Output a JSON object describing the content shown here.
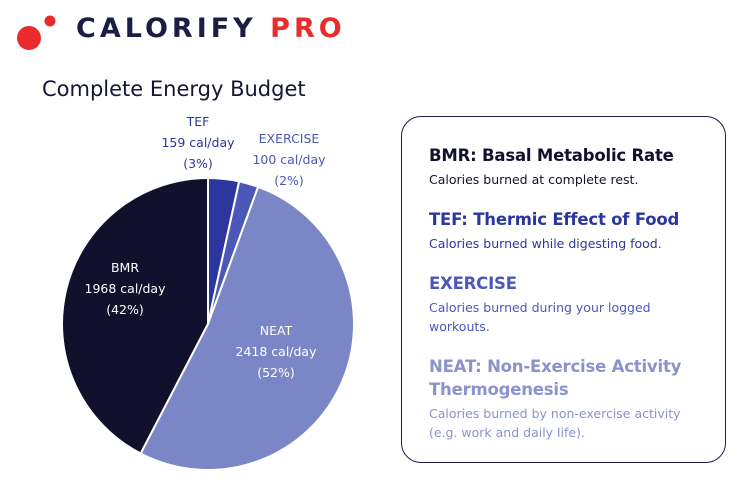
{
  "brand": {
    "name_main": "CALORIFY",
    "name_accent": "PRO"
  },
  "colors": {
    "brand_dark": "#1c1d45",
    "brand_red": "#ea2b2b"
  },
  "chart_data": {
    "type": "pie",
    "title": "Complete Energy Budget",
    "slices": [
      {
        "label": "BMR",
        "value": 1968,
        "value_label": "1968 cal/day",
        "percent_label": "(42%)",
        "color": "#11112e",
        "text_color": "#ffffff"
      },
      {
        "label": "TEF",
        "value": 159,
        "value_label": "159 cal/day",
        "percent_label": "(3%)",
        "color": "#2b379f",
        "text_color": "#2b379f"
      },
      {
        "label": "EXERCISE",
        "value": 100,
        "value_label": "100 cal/day",
        "percent_label": "(2%)",
        "color": "#4b58b8",
        "text_color": "#4b58b8"
      },
      {
        "label": "NEAT",
        "value": 2418,
        "value_label": "2418 cal/day",
        "percent_label": "(52%)",
        "color": "#7b86c6",
        "text_color": "#ffffff"
      }
    ]
  },
  "legend": {
    "items": [
      {
        "heading": "BMR: Basal Metabolic Rate",
        "description": "Calories burned at complete rest.",
        "heading_color": "#11112e",
        "desc_color": "#11112e"
      },
      {
        "heading": "TEF: Thermic Effect of Food",
        "description": "Calories burned while digesting food.",
        "heading_color": "#2b379f",
        "desc_color": "#2b379f"
      },
      {
        "heading": "EXERCISE",
        "description": "Calories burned during your logged workouts.",
        "heading_color": "#4b58b8",
        "desc_color": "#4b58b8"
      },
      {
        "heading": "NEAT: Non-Exercise Activity Thermogenesis",
        "description": "Calories burned by non-exercise activity (e.g. work and daily life).",
        "heading_color": "#8a93cc",
        "desc_color": "#8a93cc"
      }
    ]
  }
}
